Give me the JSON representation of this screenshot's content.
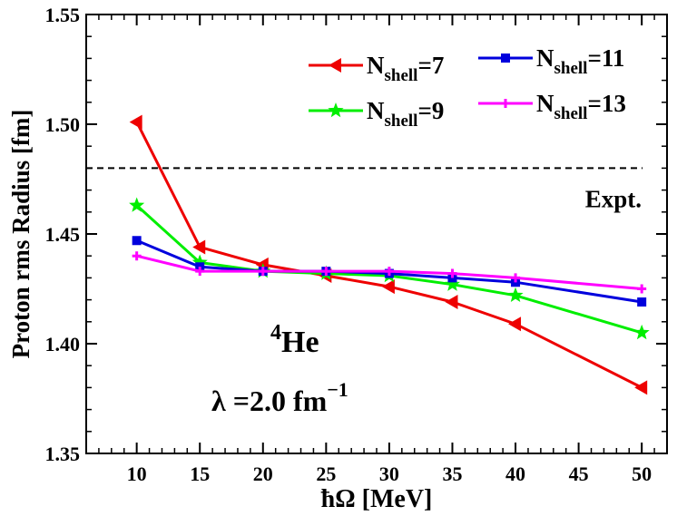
{
  "chart_data": {
    "type": "line",
    "title": "",
    "xlabel": "ħΩ [MeV]",
    "ylabel": "Proton rms Radius [fm]",
    "xlim": [
      6,
      52
    ],
    "ylim": [
      1.35,
      1.55
    ],
    "x": [
      10,
      15,
      20,
      25,
      30,
      35,
      40,
      50
    ],
    "xticks": [
      10,
      15,
      20,
      25,
      30,
      35,
      40,
      45,
      50
    ],
    "xtick_labels": [
      "10",
      "15",
      "20",
      "25",
      "30",
      "35",
      "40",
      "45",
      "50"
    ],
    "yticks": [
      1.35,
      1.4,
      1.45,
      1.5,
      1.55
    ],
    "ytick_labels": [
      "1.35",
      "1.40",
      "1.45",
      "1.50",
      "1.55"
    ],
    "grid": false,
    "legend_position": "top-right",
    "series": [
      {
        "label_base": "N",
        "label_sub": "shell",
        "label_value": "=7",
        "color": "#ee0000",
        "marker": "triangle-left",
        "values": [
          1.501,
          1.444,
          1.436,
          1.431,
          1.426,
          1.419,
          1.409,
          1.38
        ]
      },
      {
        "label_base": "N",
        "label_sub": "shell",
        "label_value": "=9",
        "color": "#00ee00",
        "marker": "star",
        "values": [
          1.463,
          1.437,
          1.433,
          1.432,
          1.431,
          1.427,
          1.422,
          1.405
        ]
      },
      {
        "label_base": "N",
        "label_sub": "shell",
        "label_value": "=11",
        "color": "#0000dd",
        "marker": "square",
        "values": [
          1.447,
          1.435,
          1.433,
          1.433,
          1.432,
          1.43,
          1.428,
          1.419
        ]
      },
      {
        "label_base": "N",
        "label_sub": "shell",
        "label_value": "=13",
        "color": "#ff00ff",
        "marker": "plus",
        "values": [
          1.44,
          1.433,
          1.433,
          1.433,
          1.433,
          1.432,
          1.43,
          1.425
        ]
      }
    ],
    "reference_line": {
      "label": "Expt.",
      "value": 1.48,
      "style": "dashed",
      "color": "#000000"
    },
    "annotations": {
      "nucleus_mass": "4",
      "nucleus_symbol": "He",
      "lambda_text": "λ =2.0 fm",
      "lambda_exp": "−1"
    }
  }
}
